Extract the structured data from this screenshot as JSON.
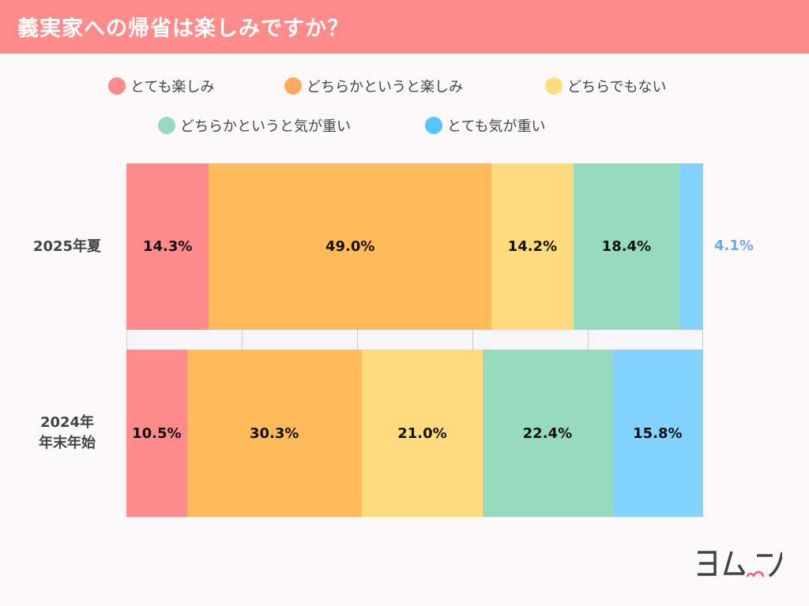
{
  "header": {
    "title": "義実家への帰省は楽しみですか？"
  },
  "chart_data": {
    "type": "bar",
    "orientation": "horizontal-stacked-100",
    "title": "義実家への帰省は楽しみですか？",
    "categories": [
      "2025年夏",
      "2024年\n年末年始"
    ],
    "category_lines": [
      [
        "2025年夏"
      ],
      [
        "2024年",
        "年末年始"
      ]
    ],
    "legend_position": "top",
    "series": [
      {
        "name": "とても楽しみ",
        "color": "#ff8a8a",
        "values": [
          14.3,
          10.5
        ],
        "labels": [
          "14.3%",
          "10.5%"
        ]
      },
      {
        "name": "どちらかというと楽しみ",
        "color": "#ffba5a",
        "values": [
          49.0,
          30.3
        ],
        "labels": [
          "49.0%",
          "30.3%"
        ]
      },
      {
        "name": "どちらでもない",
        "color": "#ffdb7d",
        "values": [
          14.2,
          21.0
        ],
        "labels": [
          "14.2%",
          "21.0%"
        ]
      },
      {
        "name": "どちらかというと気が重い",
        "color": "#96dbbd",
        "values": [
          18.4,
          22.4
        ],
        "labels": [
          "18.4%",
          "22.4%"
        ]
      },
      {
        "name": "とても気が重い",
        "color": "#84d2fe",
        "values": [
          4.1,
          15.8
        ],
        "labels": [
          "4.1%",
          "15.8%"
        ]
      }
    ],
    "outside_label_color": "#6fa8e6",
    "legend_dot_colors": [
      "#ff8a8a",
      "#ffab5e",
      "#ffdb7d",
      "#96dbbd",
      "#55c5fb"
    ]
  },
  "logo": {
    "text": "ヨムーノ",
    "accent": "#ff5a6a"
  }
}
